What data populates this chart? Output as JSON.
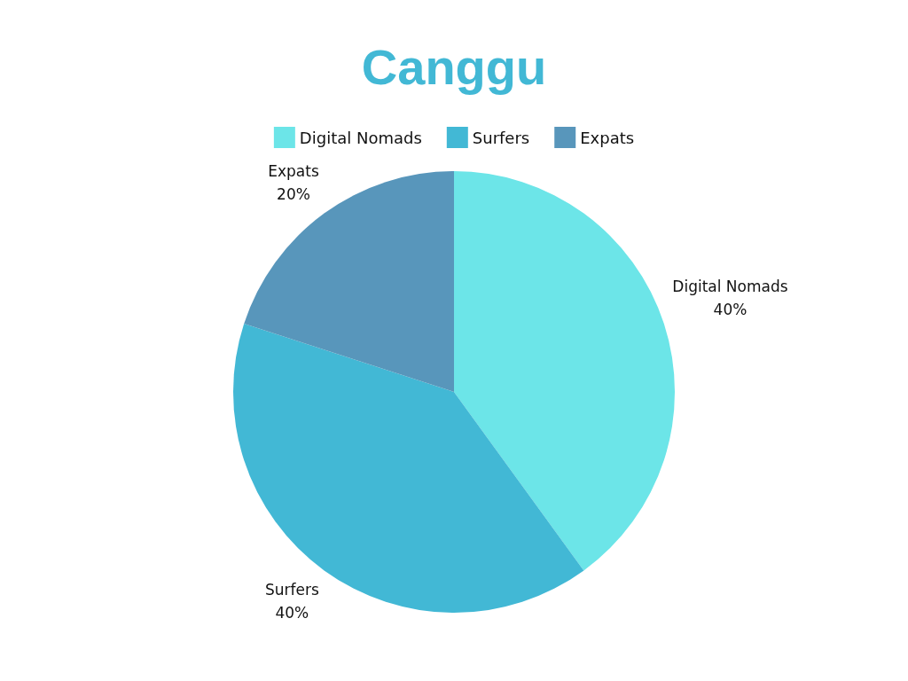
{
  "chart_data": {
    "type": "pie",
    "title": "Canggu",
    "categories": [
      "Digital Nomads",
      "Surfers",
      "Expats"
    ],
    "values": [
      40,
      40,
      20
    ],
    "value_labels": [
      "40%",
      "40%",
      "20%"
    ],
    "colors": [
      "#6ce5e8",
      "#42b8d5",
      "#5896bb"
    ],
    "legend": "top"
  }
}
